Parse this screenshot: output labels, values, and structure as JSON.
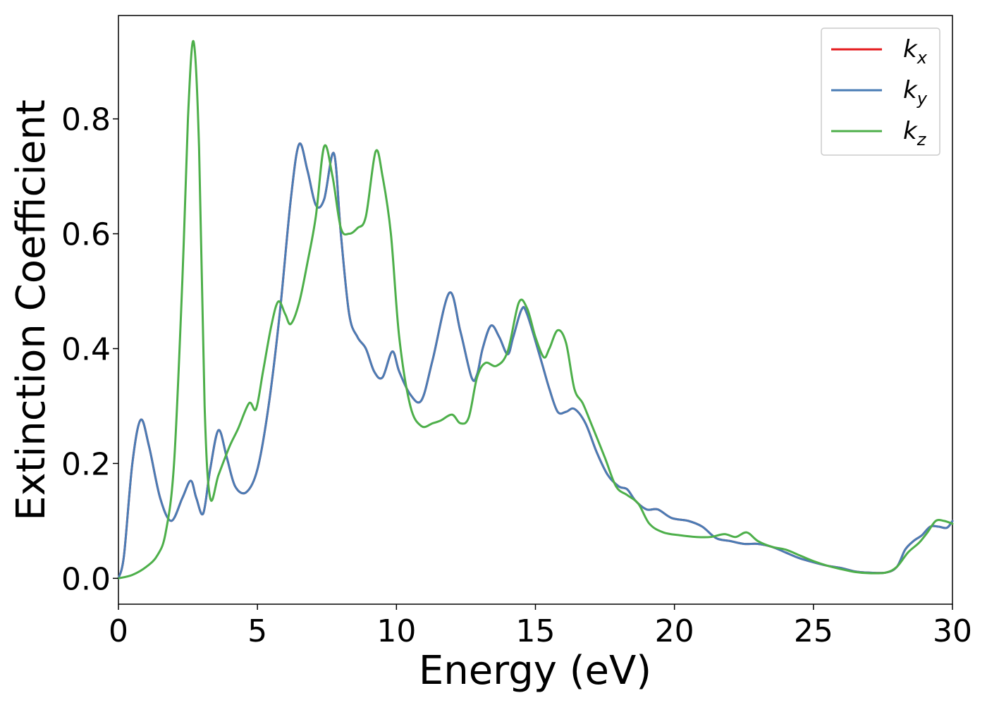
{
  "chart_data": {
    "type": "line",
    "title": "",
    "xlabel": "Energy (eV)",
    "ylabel": "Extinction Coefficient",
    "xlim": [
      0,
      30
    ],
    "ylim": [
      -0.045,
      0.98
    ],
    "xticks": [
      0,
      5,
      10,
      15,
      20,
      25,
      30
    ],
    "xtick_labels": [
      "0",
      "5",
      "10",
      "15",
      "20",
      "25",
      "30"
    ],
    "yticks": [
      0.0,
      0.2,
      0.4,
      0.6,
      0.8
    ],
    "ytick_labels": [
      "0.0",
      "0.2",
      "0.4",
      "0.6",
      "0.8"
    ],
    "grid": false,
    "legend": "top-right",
    "series": [
      {
        "name": "k_x",
        "label_main": "k",
        "label_sub": "x",
        "color": "#e41a1c",
        "points": [
          [
            0,
            0
          ],
          [
            0.2,
            0.04
          ],
          [
            0.5,
            0.2
          ],
          [
            0.8,
            0.276
          ],
          [
            1.1,
            0.23
          ],
          [
            1.5,
            0.14
          ],
          [
            1.9,
            0.1
          ],
          [
            2.3,
            0.14
          ],
          [
            2.6,
            0.17
          ],
          [
            2.8,
            0.14
          ],
          [
            3.05,
            0.113
          ],
          [
            3.3,
            0.19
          ],
          [
            3.6,
            0.258
          ],
          [
            3.9,
            0.21
          ],
          [
            4.2,
            0.16
          ],
          [
            4.6,
            0.15
          ],
          [
            5.0,
            0.19
          ],
          [
            5.4,
            0.3
          ],
          [
            5.8,
            0.46
          ],
          [
            6.2,
            0.66
          ],
          [
            6.5,
            0.756
          ],
          [
            6.8,
            0.71
          ],
          [
            7.1,
            0.65
          ],
          [
            7.4,
            0.66
          ],
          [
            7.75,
            0.74
          ],
          [
            8.0,
            0.6
          ],
          [
            8.3,
            0.46
          ],
          [
            8.6,
            0.42
          ],
          [
            8.9,
            0.4
          ],
          [
            9.2,
            0.36
          ],
          [
            9.5,
            0.35
          ],
          [
            9.85,
            0.395
          ],
          [
            10.1,
            0.36
          ],
          [
            10.5,
            0.32
          ],
          [
            10.9,
            0.31
          ],
          [
            11.3,
            0.38
          ],
          [
            11.9,
            0.497
          ],
          [
            12.3,
            0.43
          ],
          [
            12.7,
            0.35
          ],
          [
            12.9,
            0.355
          ],
          [
            13.1,
            0.4
          ],
          [
            13.4,
            0.44
          ],
          [
            13.7,
            0.42
          ],
          [
            14.0,
            0.39
          ],
          [
            14.2,
            0.42
          ],
          [
            14.5,
            0.468
          ],
          [
            14.7,
            0.46
          ],
          [
            15.2,
            0.38
          ],
          [
            15.5,
            0.33
          ],
          [
            15.8,
            0.29
          ],
          [
            16.1,
            0.29
          ],
          [
            16.4,
            0.295
          ],
          [
            16.8,
            0.27
          ],
          [
            17.2,
            0.22
          ],
          [
            17.6,
            0.18
          ],
          [
            18.0,
            0.16
          ],
          [
            18.3,
            0.155
          ],
          [
            18.6,
            0.135
          ],
          [
            19.0,
            0.12
          ],
          [
            19.4,
            0.12
          ],
          [
            19.9,
            0.105
          ],
          [
            20.5,
            0.1
          ],
          [
            21.0,
            0.09
          ],
          [
            21.5,
            0.07
          ],
          [
            22.0,
            0.065
          ],
          [
            22.5,
            0.06
          ],
          [
            23.0,
            0.06
          ],
          [
            23.5,
            0.055
          ],
          [
            24.0,
            0.045
          ],
          [
            24.5,
            0.035
          ],
          [
            25.0,
            0.028
          ],
          [
            25.5,
            0.022
          ],
          [
            26.0,
            0.018
          ],
          [
            26.5,
            0.012
          ],
          [
            27.0,
            0.01
          ],
          [
            27.6,
            0.01
          ],
          [
            28.0,
            0.02
          ],
          [
            28.3,
            0.05
          ],
          [
            28.6,
            0.065
          ],
          [
            28.9,
            0.075
          ],
          [
            29.2,
            0.09
          ],
          [
            29.5,
            0.09
          ],
          [
            29.8,
            0.088
          ],
          [
            30.0,
            0.1
          ]
        ]
      },
      {
        "name": "k_y",
        "label_main": "k",
        "label_sub": "y",
        "color": "#4a7cb5",
        "points": [
          [
            0,
            0
          ],
          [
            0.2,
            0.04
          ],
          [
            0.5,
            0.2
          ],
          [
            0.8,
            0.276
          ],
          [
            1.1,
            0.23
          ],
          [
            1.5,
            0.14
          ],
          [
            1.9,
            0.1
          ],
          [
            2.3,
            0.14
          ],
          [
            2.6,
            0.17
          ],
          [
            2.8,
            0.14
          ],
          [
            3.05,
            0.113
          ],
          [
            3.3,
            0.19
          ],
          [
            3.6,
            0.258
          ],
          [
            3.9,
            0.21
          ],
          [
            4.2,
            0.16
          ],
          [
            4.6,
            0.15
          ],
          [
            5.0,
            0.19
          ],
          [
            5.4,
            0.3
          ],
          [
            5.8,
            0.46
          ],
          [
            6.2,
            0.66
          ],
          [
            6.5,
            0.756
          ],
          [
            6.8,
            0.71
          ],
          [
            7.1,
            0.65
          ],
          [
            7.4,
            0.66
          ],
          [
            7.75,
            0.74
          ],
          [
            8.0,
            0.6
          ],
          [
            8.3,
            0.46
          ],
          [
            8.6,
            0.42
          ],
          [
            8.9,
            0.4
          ],
          [
            9.2,
            0.36
          ],
          [
            9.5,
            0.35
          ],
          [
            9.85,
            0.395
          ],
          [
            10.1,
            0.36
          ],
          [
            10.5,
            0.32
          ],
          [
            10.9,
            0.31
          ],
          [
            11.3,
            0.38
          ],
          [
            11.9,
            0.497
          ],
          [
            12.3,
            0.43
          ],
          [
            12.7,
            0.35
          ],
          [
            12.9,
            0.355
          ],
          [
            13.1,
            0.4
          ],
          [
            13.4,
            0.44
          ],
          [
            13.7,
            0.42
          ],
          [
            14.0,
            0.39
          ],
          [
            14.2,
            0.42
          ],
          [
            14.5,
            0.468
          ],
          [
            14.7,
            0.46
          ],
          [
            15.2,
            0.38
          ],
          [
            15.5,
            0.33
          ],
          [
            15.8,
            0.29
          ],
          [
            16.1,
            0.29
          ],
          [
            16.4,
            0.295
          ],
          [
            16.8,
            0.27
          ],
          [
            17.2,
            0.22
          ],
          [
            17.6,
            0.18
          ],
          [
            18.0,
            0.16
          ],
          [
            18.3,
            0.155
          ],
          [
            18.6,
            0.135
          ],
          [
            19.0,
            0.12
          ],
          [
            19.4,
            0.12
          ],
          [
            19.9,
            0.105
          ],
          [
            20.5,
            0.1
          ],
          [
            21.0,
            0.09
          ],
          [
            21.5,
            0.07
          ],
          [
            22.0,
            0.065
          ],
          [
            22.5,
            0.06
          ],
          [
            23.0,
            0.06
          ],
          [
            23.5,
            0.055
          ],
          [
            24.0,
            0.045
          ],
          [
            24.5,
            0.035
          ],
          [
            25.0,
            0.028
          ],
          [
            25.5,
            0.022
          ],
          [
            26.0,
            0.018
          ],
          [
            26.5,
            0.012
          ],
          [
            27.0,
            0.01
          ],
          [
            27.6,
            0.01
          ],
          [
            28.0,
            0.02
          ],
          [
            28.3,
            0.05
          ],
          [
            28.6,
            0.065
          ],
          [
            28.9,
            0.075
          ],
          [
            29.2,
            0.09
          ],
          [
            29.5,
            0.09
          ],
          [
            29.8,
            0.088
          ],
          [
            30.0,
            0.1
          ]
        ]
      },
      {
        "name": "k_z",
        "label_main": "k",
        "label_sub": "z",
        "color": "#4daf4a",
        "points": [
          [
            0,
            0
          ],
          [
            0.5,
            0.006
          ],
          [
            1.0,
            0.02
          ],
          [
            1.4,
            0.04
          ],
          [
            1.7,
            0.08
          ],
          [
            2.0,
            0.2
          ],
          [
            2.3,
            0.52
          ],
          [
            2.5,
            0.8
          ],
          [
            2.7,
            0.935
          ],
          [
            2.9,
            0.75
          ],
          [
            3.1,
            0.3
          ],
          [
            3.3,
            0.14
          ],
          [
            3.6,
            0.18
          ],
          [
            4.0,
            0.23
          ],
          [
            4.3,
            0.26
          ],
          [
            4.7,
            0.305
          ],
          [
            4.95,
            0.295
          ],
          [
            5.2,
            0.36
          ],
          [
            5.5,
            0.44
          ],
          [
            5.75,
            0.482
          ],
          [
            6.0,
            0.46
          ],
          [
            6.2,
            0.443
          ],
          [
            6.5,
            0.48
          ],
          [
            6.8,
            0.55
          ],
          [
            7.1,
            0.63
          ],
          [
            7.4,
            0.752
          ],
          [
            7.7,
            0.7
          ],
          [
            8.0,
            0.61
          ],
          [
            8.3,
            0.6
          ],
          [
            8.6,
            0.61
          ],
          [
            8.9,
            0.63
          ],
          [
            9.25,
            0.743
          ],
          [
            9.5,
            0.7
          ],
          [
            9.8,
            0.6
          ],
          [
            10.1,
            0.42
          ],
          [
            10.5,
            0.3
          ],
          [
            10.9,
            0.265
          ],
          [
            11.3,
            0.27
          ],
          [
            11.6,
            0.275
          ],
          [
            12.0,
            0.285
          ],
          [
            12.3,
            0.27
          ],
          [
            12.6,
            0.28
          ],
          [
            12.9,
            0.35
          ],
          [
            13.2,
            0.375
          ],
          [
            13.6,
            0.37
          ],
          [
            14.0,
            0.395
          ],
          [
            14.4,
            0.48
          ],
          [
            14.7,
            0.47
          ],
          [
            15.0,
            0.42
          ],
          [
            15.3,
            0.385
          ],
          [
            15.5,
            0.4
          ],
          [
            15.8,
            0.432
          ],
          [
            16.1,
            0.41
          ],
          [
            16.4,
            0.33
          ],
          [
            16.7,
            0.305
          ],
          [
            17.0,
            0.27
          ],
          [
            17.5,
            0.21
          ],
          [
            17.9,
            0.16
          ],
          [
            18.3,
            0.145
          ],
          [
            18.7,
            0.13
          ],
          [
            19.1,
            0.095
          ],
          [
            19.6,
            0.08
          ],
          [
            20.2,
            0.075
          ],
          [
            20.8,
            0.072
          ],
          [
            21.3,
            0.072
          ],
          [
            21.8,
            0.077
          ],
          [
            22.2,
            0.072
          ],
          [
            22.6,
            0.08
          ],
          [
            23.0,
            0.065
          ],
          [
            23.5,
            0.055
          ],
          [
            24.0,
            0.05
          ],
          [
            24.5,
            0.04
          ],
          [
            25.0,
            0.03
          ],
          [
            25.5,
            0.022
          ],
          [
            26.0,
            0.016
          ],
          [
            26.5,
            0.011
          ],
          [
            27.0,
            0.009
          ],
          [
            27.6,
            0.01
          ],
          [
            28.0,
            0.02
          ],
          [
            28.4,
            0.045
          ],
          [
            28.8,
            0.062
          ],
          [
            29.1,
            0.08
          ],
          [
            29.4,
            0.1
          ],
          [
            29.7,
            0.1
          ],
          [
            30.0,
            0.095
          ]
        ]
      }
    ]
  }
}
